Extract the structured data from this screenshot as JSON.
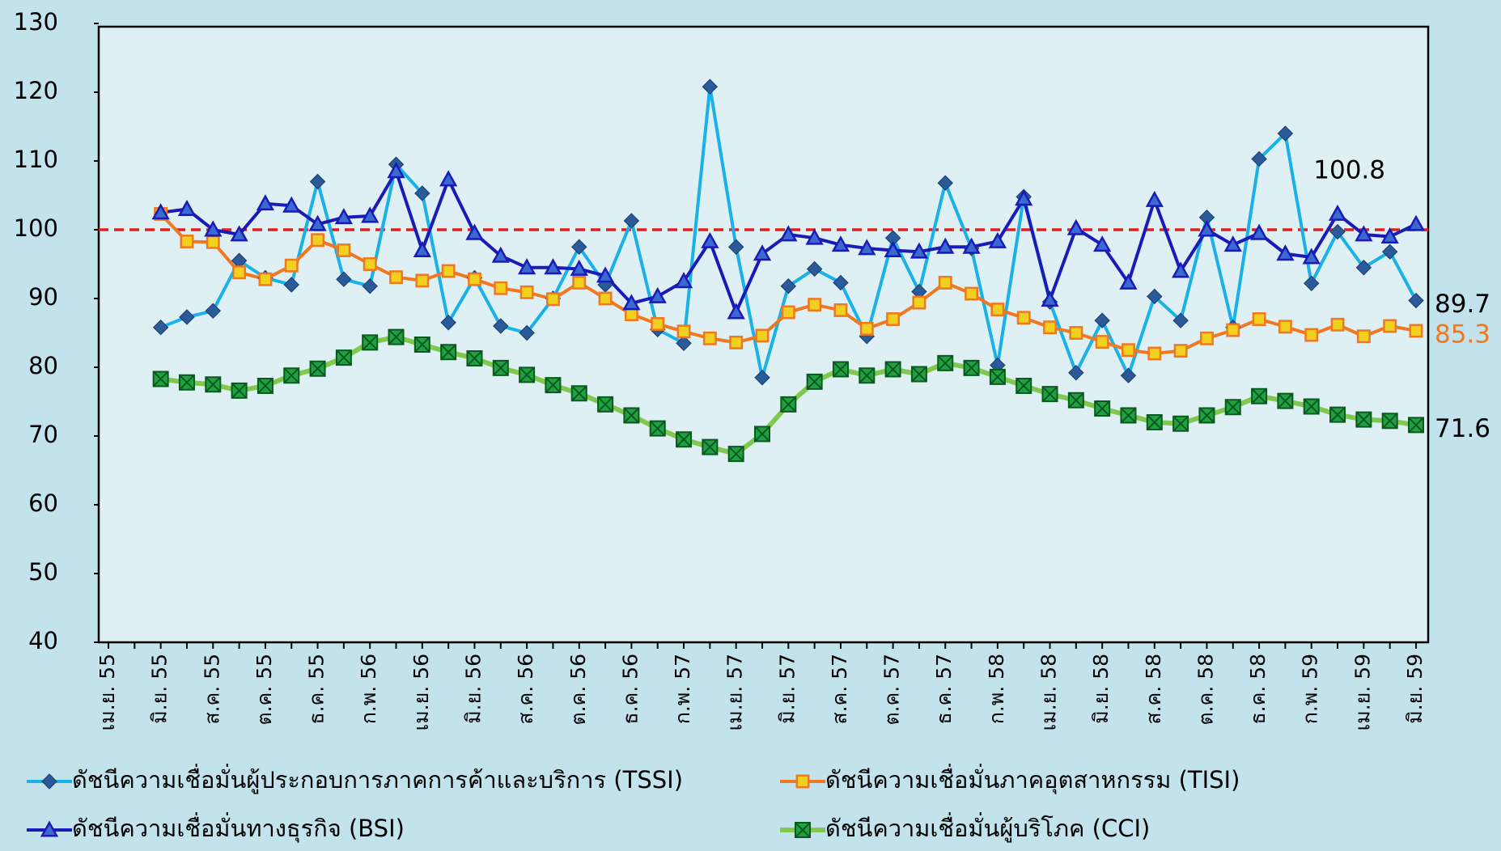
{
  "chart_data": {
    "type": "line",
    "categories": [
      "เม.ย. 55",
      null,
      "มิ.ย. 55",
      null,
      "ส.ค. 55",
      null,
      "ต.ค. 55",
      null,
      "ธ.ค. 55",
      null,
      "ก.พ. 56",
      null,
      "เม.ย. 56",
      null,
      "มิ.ย. 56",
      null,
      "ส.ค. 56",
      null,
      "ต.ค. 56",
      null,
      "ธ.ค. 56",
      null,
      "ก.พ. 57",
      null,
      "เม.ย. 57",
      null,
      "มิ.ย. 57",
      null,
      "ส.ค. 57",
      null,
      "ต.ค. 57",
      null,
      "ธ.ค. 57",
      null,
      "ก.พ. 58",
      null,
      "เม.ย. 58",
      null,
      "มิ.ย. 58",
      null,
      "ส.ค. 58",
      null,
      "ต.ค. 58",
      null,
      "ธ.ค. 58",
      null,
      "ก.พ. 59",
      null,
      "เม.ย. 59",
      null,
      "มิ.ย. 59"
    ],
    "series": [
      {
        "name": "ดัชนีความเชื่อมั่นผู้ประกอบการภาคการค้าและบริการ (TSSI)",
        "color": "#1ab0e8",
        "marker": "diamond",
        "marker_color": "#2a5a9a",
        "label_color": "#000000",
        "values": [
          null,
          null,
          85.8,
          87.3,
          88.2,
          95.5,
          93.0,
          92.0,
          107.0,
          92.8,
          91.8,
          109.5,
          105.3,
          86.5,
          93.0,
          86.0,
          85.0,
          90.0,
          97.5,
          92.0,
          101.3,
          85.5,
          83.5,
          120.8,
          97.5,
          78.5,
          91.8,
          94.3,
          92.3,
          84.5,
          98.8,
          91.0,
          106.8,
          97.3,
          80.3,
          104.8,
          89.5,
          79.2,
          86.8,
          78.8,
          90.3,
          86.8,
          101.8,
          85.8,
          110.3,
          114.0,
          92.2,
          99.7,
          94.5,
          96.8,
          89.7
        ]
      },
      {
        "name": "ดัชนีความเชื่อมั่นภาคอุตสาหกรรม (TISI)",
        "color": "#f07820",
        "marker": "square",
        "marker_color": "#f2d020",
        "label_color": "#f07820",
        "values": [
          null,
          null,
          102.3,
          98.3,
          98.2,
          93.8,
          92.8,
          94.8,
          98.5,
          97.0,
          95.0,
          93.1,
          92.6,
          94.0,
          92.8,
          91.5,
          90.9,
          89.9,
          92.3,
          90.0,
          87.7,
          86.3,
          85.2,
          84.2,
          83.6,
          84.6,
          88.0,
          89.1,
          88.3,
          85.6,
          87.0,
          89.4,
          92.3,
          90.7,
          88.4,
          87.2,
          85.8,
          85.0,
          83.7,
          82.5,
          82.0,
          82.4,
          84.2,
          85.4,
          87.0,
          85.9,
          84.7,
          86.2,
          84.5,
          86.0,
          85.3
        ]
      },
      {
        "name": "ดัชนีความเชื่อมั่นทางธุรกิจ (BSI)",
        "color": "#1a1ab8",
        "marker": "triangle",
        "marker_color": "#3a6ad0",
        "label_color": "#000000",
        "values": [
          null,
          null,
          102.5,
          103.0,
          100.0,
          99.3,
          103.8,
          103.5,
          100.8,
          101.8,
          102.0,
          108.5,
          97.0,
          107.3,
          99.5,
          96.2,
          94.5,
          94.5,
          94.3,
          93.3,
          89.3,
          90.3,
          92.5,
          98.3,
          88.0,
          96.5,
          99.3,
          98.8,
          97.8,
          97.3,
          97.0,
          96.8,
          97.5,
          97.5,
          98.3,
          104.5,
          89.8,
          100.2,
          97.8,
          92.3,
          104.3,
          94.0,
          100.0,
          97.8,
          99.5,
          96.5,
          96.0,
          102.3,
          99.3,
          99.0,
          100.8
        ]
      },
      {
        "name": "ดัชนีความเชื่อมั่นผู้บริโภค (CCI)",
        "color": "#80c850",
        "marker": "square-x",
        "marker_color": "#20a040",
        "label_color": "#000000",
        "values": [
          null,
          null,
          78.3,
          77.8,
          77.5,
          76.6,
          77.3,
          78.8,
          79.8,
          81.4,
          83.6,
          84.4,
          83.3,
          82.2,
          81.3,
          79.9,
          78.9,
          77.4,
          76.2,
          74.6,
          73.0,
          71.1,
          69.5,
          68.4,
          67.4,
          70.3,
          74.6,
          77.9,
          79.7,
          78.8,
          79.7,
          79.0,
          80.6,
          79.9,
          78.6,
          77.3,
          76.1,
          75.2,
          74.0,
          73.0,
          72.0,
          71.8,
          73.0,
          74.2,
          75.8,
          75.1,
          74.3,
          73.1,
          72.4,
          72.2,
          71.6
        ]
      }
    ],
    "reference_line": {
      "value": 100,
      "color": "#e02020"
    },
    "ylim": [
      40,
      130
    ],
    "yticks": [
      40,
      50,
      60,
      70,
      80,
      90,
      100,
      110,
      120,
      130
    ],
    "legend": "bottom"
  }
}
